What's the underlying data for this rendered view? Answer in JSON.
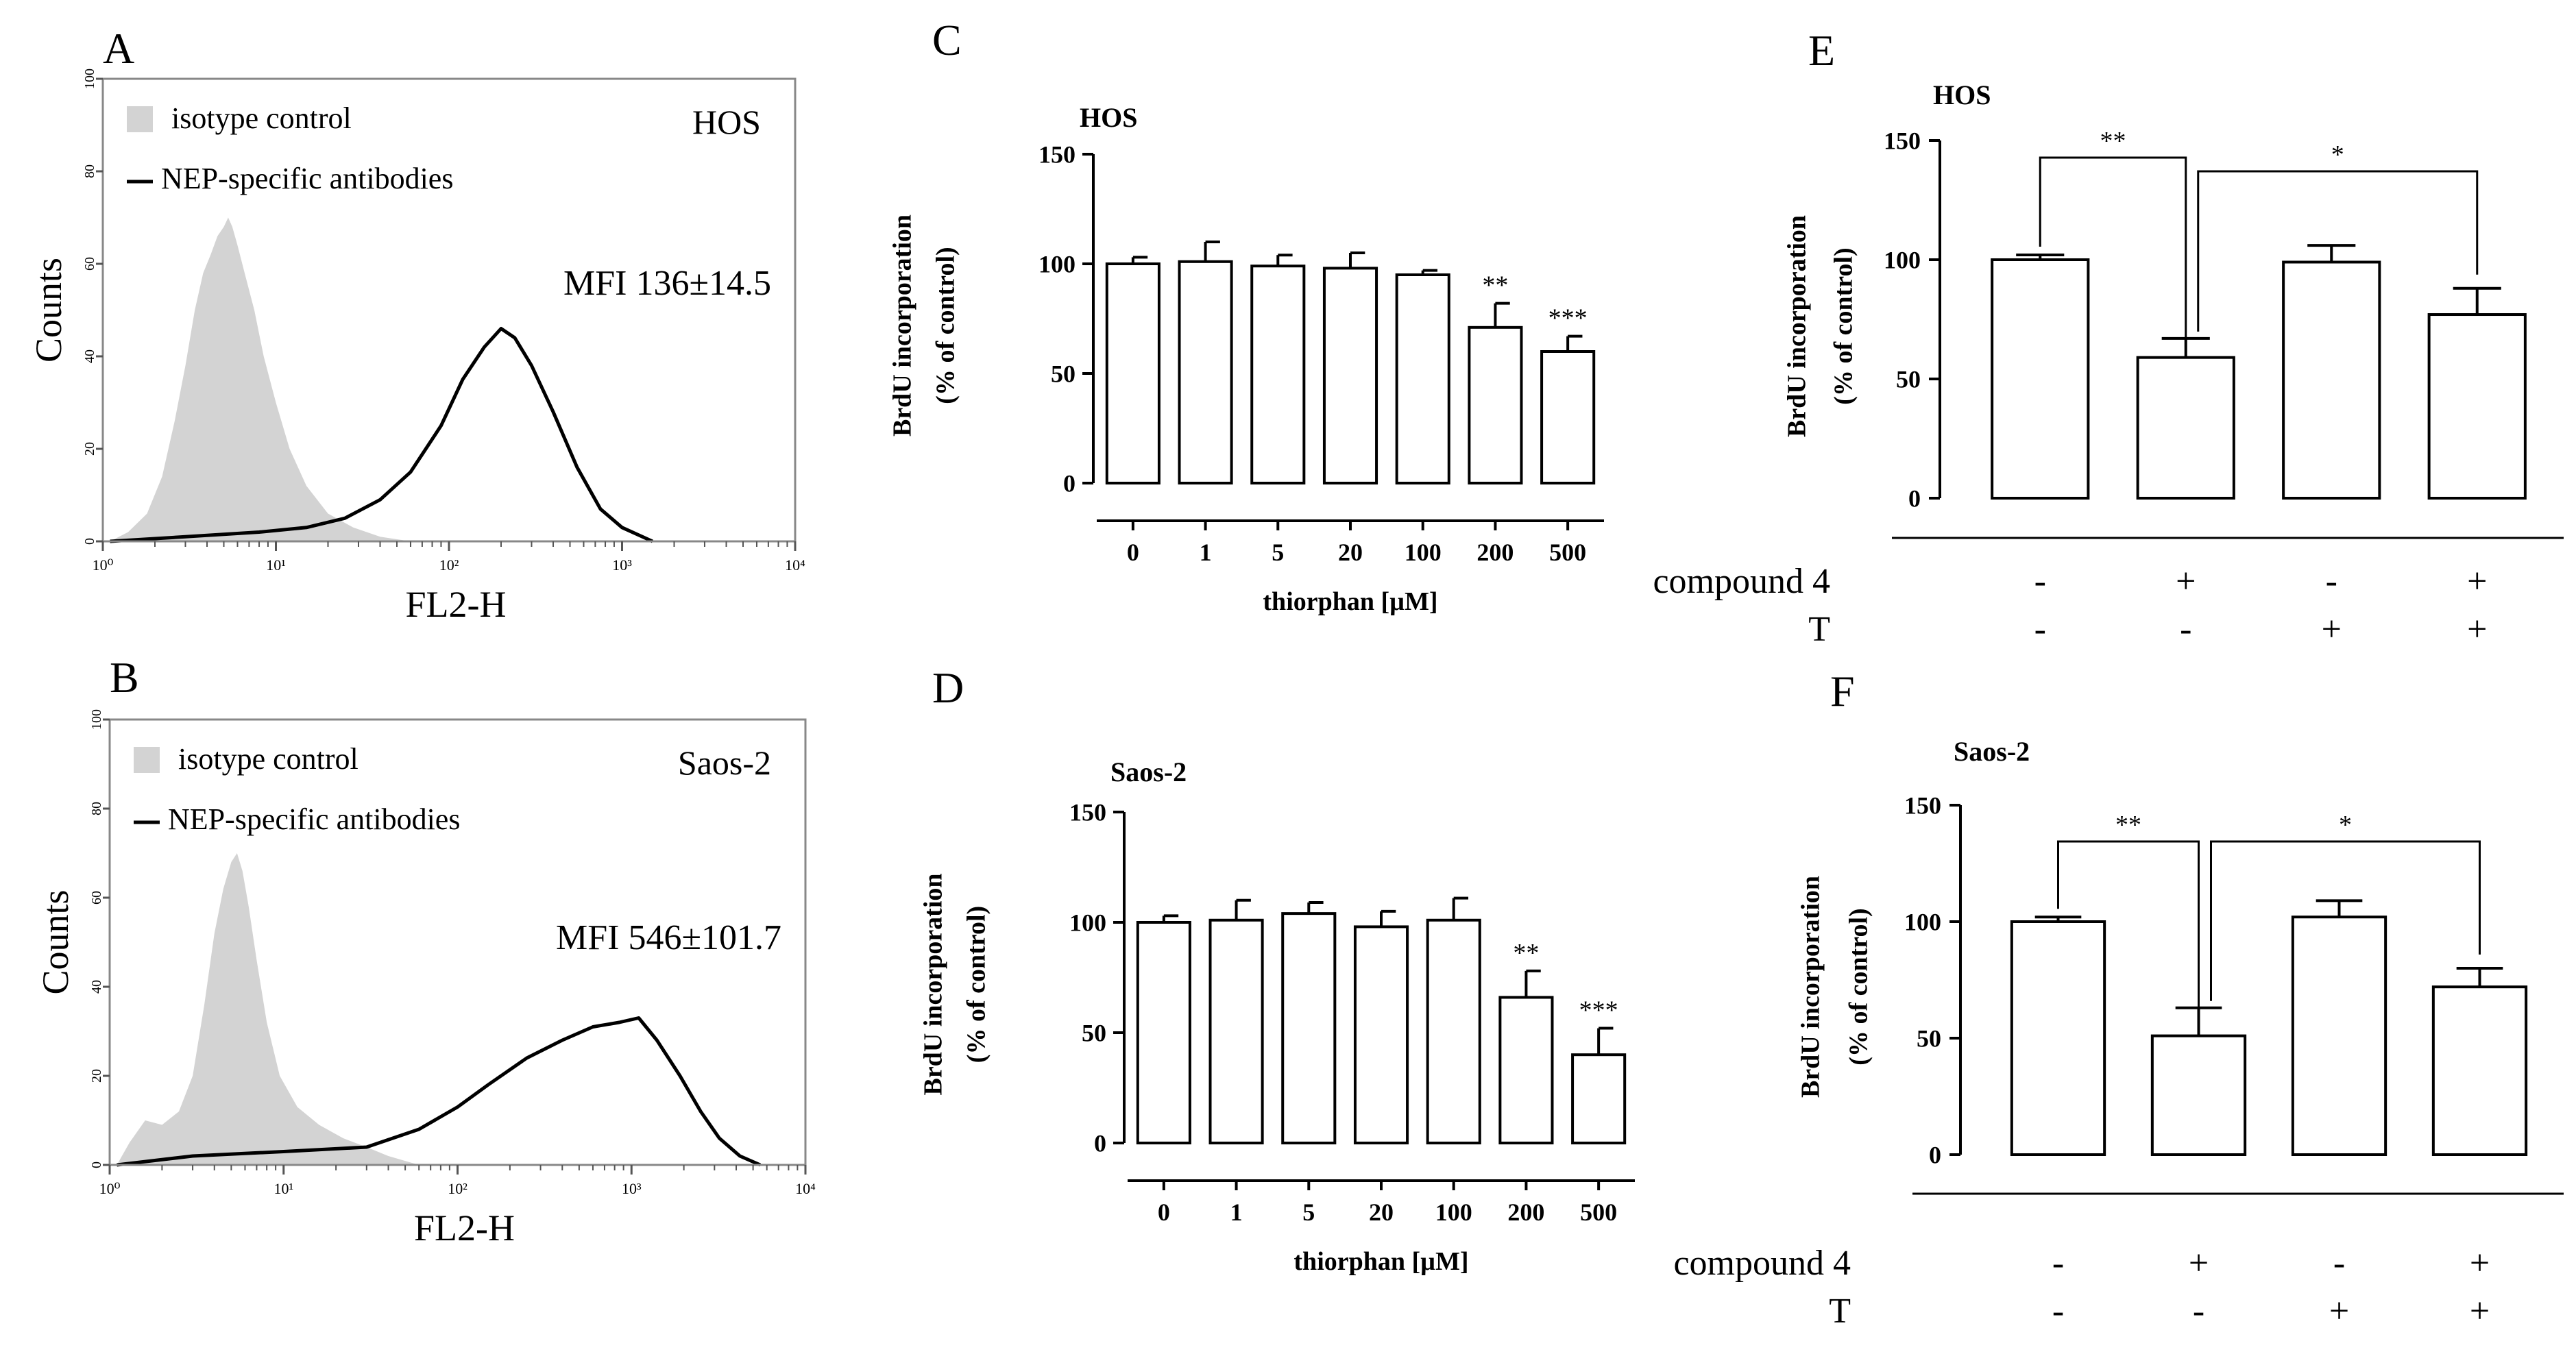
{
  "chart_data": [
    {
      "id": "A",
      "type": "histogram",
      "panel_label": "A",
      "cell_line": "HOS",
      "ylabel": "Counts",
      "xlabel": "FL2-H",
      "x_scale": "log",
      "xlim": [
        1,
        10000
      ],
      "ylim": [
        0,
        100
      ],
      "x_tick_labels": [
        "10⁰",
        "10¹",
        "10²",
        "10³",
        "10⁴"
      ],
      "y_tick_labels": [
        "0",
        "20",
        "40",
        "60",
        "80",
        "100"
      ],
      "legend": [
        "isotype control",
        "NEP-specific antibodies"
      ],
      "annotation": "MFI 136±14.5",
      "series": [
        {
          "name": "isotype control",
          "fill": "#d3d3d3",
          "points": [
            [
              1.1,
              0
            ],
            [
              1.4,
              2
            ],
            [
              1.8,
              6
            ],
            [
              2.2,
              14
            ],
            [
              2.6,
              26
            ],
            [
              3.0,
              38
            ],
            [
              3.4,
              50
            ],
            [
              3.8,
              58
            ],
            [
              4.2,
              62
            ],
            [
              4.6,
              66
            ],
            [
              5.0,
              68
            ],
            [
              5.3,
              70
            ],
            [
              5.6,
              68
            ],
            [
              6.0,
              64
            ],
            [
              6.6,
              58
            ],
            [
              7.5,
              50
            ],
            [
              8.5,
              40
            ],
            [
              10,
              30
            ],
            [
              12,
              20
            ],
            [
              15,
              12
            ],
            [
              20,
              6
            ],
            [
              28,
              3
            ],
            [
              40,
              1
            ],
            [
              60,
              0
            ]
          ]
        },
        {
          "name": "NEP-specific antibodies",
          "stroke": "#000000",
          "points": [
            [
              1.1,
              0
            ],
            [
              3,
              1
            ],
            [
              8,
              2
            ],
            [
              15,
              3
            ],
            [
              25,
              5
            ],
            [
              40,
              9
            ],
            [
              60,
              15
            ],
            [
              90,
              25
            ],
            [
              120,
              35
            ],
            [
              160,
              42
            ],
            [
              200,
              46
            ],
            [
              240,
              44
            ],
            [
              300,
              38
            ],
            [
              400,
              28
            ],
            [
              550,
              16
            ],
            [
              750,
              7
            ],
            [
              1000,
              3
            ],
            [
              1500,
              0
            ]
          ]
        }
      ]
    },
    {
      "id": "B",
      "type": "histogram",
      "panel_label": "B",
      "cell_line": "Saos-2",
      "ylabel": "Counts",
      "xlabel": "FL2-H",
      "x_scale": "log",
      "xlim": [
        1,
        10000
      ],
      "ylim": [
        0,
        100
      ],
      "x_tick_labels": [
        "10⁰",
        "10¹",
        "10²",
        "10³",
        "10⁴"
      ],
      "y_tick_labels": [
        "0",
        "20",
        "40",
        "60",
        "80",
        "100"
      ],
      "legend": [
        "isotype control",
        "NEP-specific antibodies"
      ],
      "annotation": "MFI 546±101.7",
      "series": [
        {
          "name": "isotype control",
          "fill": "#d3d3d3",
          "points": [
            [
              1.1,
              0
            ],
            [
              1.3,
              5
            ],
            [
              1.6,
              10
            ],
            [
              2.0,
              9
            ],
            [
              2.5,
              12
            ],
            [
              3.0,
              20
            ],
            [
              3.5,
              36
            ],
            [
              4.0,
              52
            ],
            [
              4.5,
              62
            ],
            [
              5.0,
              68
            ],
            [
              5.4,
              70
            ],
            [
              5.8,
              66
            ],
            [
              6.3,
              58
            ],
            [
              7.0,
              46
            ],
            [
              8.0,
              32
            ],
            [
              9.5,
              20
            ],
            [
              12,
              13
            ],
            [
              16,
              9
            ],
            [
              22,
              6
            ],
            [
              30,
              4
            ],
            [
              40,
              2
            ],
            [
              60,
              0
            ]
          ]
        },
        {
          "name": "NEP-specific antibodies",
          "stroke": "#000000",
          "points": [
            [
              1.1,
              0
            ],
            [
              3,
              2
            ],
            [
              10,
              3
            ],
            [
              30,
              4
            ],
            [
              60,
              8
            ],
            [
              100,
              13
            ],
            [
              150,
              18
            ],
            [
              250,
              24
            ],
            [
              400,
              28
            ],
            [
              600,
              31
            ],
            [
              850,
              32
            ],
            [
              1100,
              33
            ],
            [
              1400,
              28
            ],
            [
              1900,
              20
            ],
            [
              2500,
              12
            ],
            [
              3200,
              6
            ],
            [
              4200,
              2
            ],
            [
              5500,
              0
            ]
          ]
        }
      ]
    },
    {
      "id": "C",
      "type": "bar",
      "panel_label": "C",
      "cell_line": "HOS",
      "ylabel_line1": "BrdU incorporation",
      "ylabel_line2": "(% of control)",
      "xlabel": "thiorphan [µM]",
      "ylim": [
        0,
        150
      ],
      "y_ticks": [
        0,
        50,
        100,
        150
      ],
      "categories": [
        "0",
        "1",
        "5",
        "20",
        "100",
        "200",
        "500"
      ],
      "values": [
        100,
        101,
        99,
        98,
        95,
        71,
        60
      ],
      "errors": [
        3,
        9,
        5,
        7,
        2,
        11,
        7
      ],
      "significance": [
        "",
        "",
        "",
        "",
        "",
        "**",
        "***"
      ]
    },
    {
      "id": "D",
      "type": "bar",
      "panel_label": "D",
      "cell_line": "Saos-2",
      "ylabel_line1": "BrdU incorporation",
      "ylabel_line2": "(% of control)",
      "xlabel": "thiorphan [µM]",
      "ylim": [
        0,
        150
      ],
      "y_ticks": [
        0,
        50,
        100,
        150
      ],
      "categories": [
        "0",
        "1",
        "5",
        "20",
        "100",
        "200",
        "500"
      ],
      "values": [
        100,
        101,
        104,
        98,
        101,
        66,
        40
      ],
      "errors": [
        3,
        9,
        5,
        7,
        10,
        12,
        12
      ],
      "significance": [
        "",
        "",
        "",
        "",
        "",
        "**",
        "***"
      ]
    },
    {
      "id": "E",
      "type": "bar",
      "panel_label": "E",
      "cell_line": "HOS",
      "ylabel_line1": "BrdU incorporation",
      "ylabel_line2": "(% of control)",
      "ylim": [
        0,
        150
      ],
      "y_ticks": [
        0,
        50,
        100,
        150
      ],
      "values": [
        100,
        59,
        99,
        77
      ],
      "errors": [
        2,
        8,
        7,
        11
      ],
      "conditions": [
        {
          "label": "compound 4",
          "values": [
            "-",
            "+",
            "-",
            "+"
          ]
        },
        {
          "label": "T",
          "values": [
            "-",
            "-",
            "+",
            "+"
          ]
        }
      ],
      "brackets": [
        {
          "from": 0,
          "to": 1,
          "label": "**"
        },
        {
          "from": 1,
          "to": 3,
          "label": "*"
        }
      ]
    },
    {
      "id": "F",
      "type": "bar",
      "panel_label": "F",
      "cell_line": "Saos-2",
      "ylabel_line1": "BrdU incorporation",
      "ylabel_line2": "(% of control)",
      "ylim": [
        0,
        150
      ],
      "y_ticks": [
        0,
        50,
        100,
        150
      ],
      "values": [
        100,
        51,
        102,
        72
      ],
      "errors": [
        2,
        12,
        7,
        8
      ],
      "conditions": [
        {
          "label": "compound 4",
          "values": [
            "-",
            "+",
            "-",
            "+"
          ]
        },
        {
          "label": "T",
          "values": [
            "-",
            "-",
            "+",
            "+"
          ]
        }
      ],
      "brackets": [
        {
          "from": 0,
          "to": 1,
          "label": "**"
        },
        {
          "from": 1,
          "to": 3,
          "label": "*"
        }
      ]
    }
  ]
}
